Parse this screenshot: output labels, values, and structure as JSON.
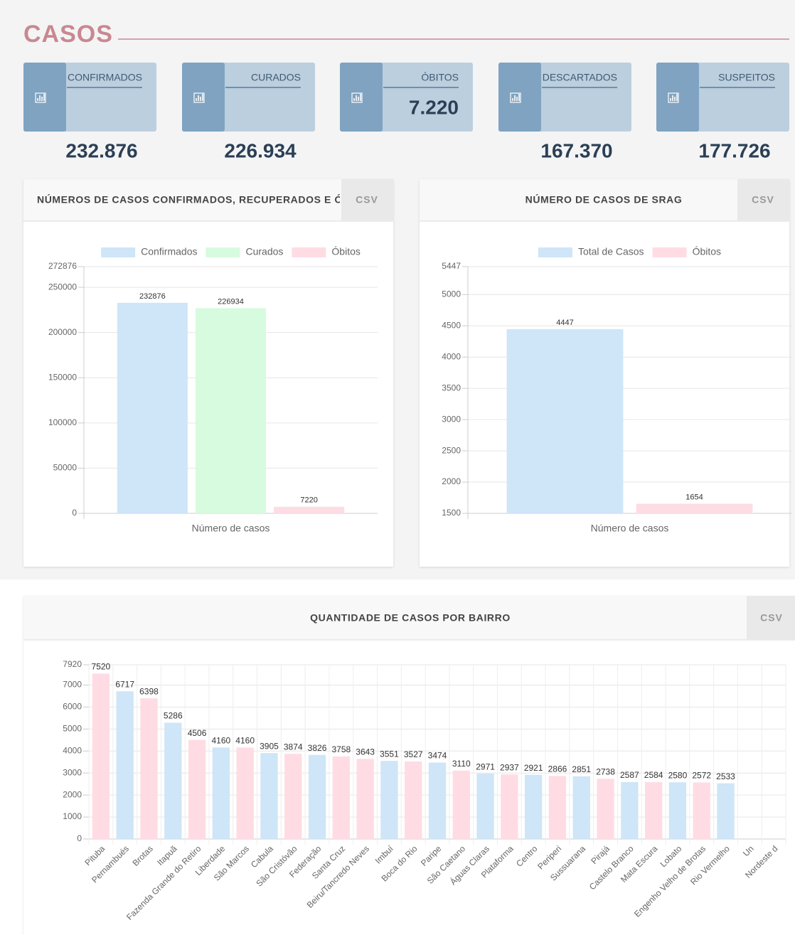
{
  "header": {
    "title": "CASOS"
  },
  "cards": [
    {
      "label": "CONFIRMADOS",
      "value": "232.876"
    },
    {
      "label": "CURADOS",
      "value": "226.934"
    },
    {
      "label": "ÓBITOS",
      "value": "7.220"
    },
    {
      "label": "DESCARTADOS",
      "value": "167.370"
    },
    {
      "label": "SUSPEITOS",
      "value": "177.726"
    }
  ],
  "buttons": [
    "CSV",
    "CSV",
    "CSV"
  ],
  "chart_data": [
    {
      "type": "bar",
      "title": "NÚMEROS DE CASOS CONFIRMADOS, RECUPERADOS E Ó",
      "categories": [
        "Número de casos"
      ],
      "series": [
        {
          "name": "Confirmados",
          "color": "#cfe5f8",
          "values": [
            232876
          ]
        },
        {
          "name": "Curados",
          "color": "#d6fbdf",
          "values": [
            226934
          ]
        },
        {
          "name": "Óbitos",
          "color": "#ffdce3",
          "values": [
            7220
          ]
        }
      ],
      "ylim": [
        0,
        272876
      ],
      "yticks": [
        0,
        50000,
        100000,
        150000,
        200000,
        250000,
        272876
      ],
      "grid": true,
      "legend": "top"
    },
    {
      "type": "bar",
      "title": "NÚMERO DE CASOS DE SRAG",
      "categories": [
        "Número de casos"
      ],
      "series": [
        {
          "name": "Total de Casos",
          "color": "#cfe5f8",
          "values": [
            4447
          ]
        },
        {
          "name": "Óbitos",
          "color": "#ffdce3",
          "values": [
            1654
          ]
        }
      ],
      "ylim": [
        1500,
        5447
      ],
      "yticks": [
        1500,
        2000,
        2500,
        3000,
        3500,
        4000,
        4500,
        5000,
        5447
      ],
      "grid": true,
      "legend": "top"
    },
    {
      "type": "bar",
      "title": "QUANTIDADE DE CASOS POR BAIRRO",
      "categories": [
        "Pituba",
        "Pernambués",
        "Brotas",
        "Itapuã",
        "Fazenda Grande do Retiro",
        "Liberdade",
        "São Marcos",
        "Cabula",
        "São Cristóvão",
        "Federação",
        "Santa Cruz",
        "Beiru/Tancredo Neves",
        "Imbuí",
        "Boca do Rio",
        "Paripe",
        "São Caetano",
        "Águas Claras",
        "Plataforma",
        "Centro",
        "Periperi",
        "Sussuarana",
        "Pirajá",
        "Castelo Branco",
        "Mata Escura",
        "Lobato",
        "Engenho Velho de Brotas",
        "Rio Vermelho",
        "Un",
        "Nordeste d"
      ],
      "values": [
        7520,
        6717,
        6398,
        5286,
        4506,
        4160,
        4160,
        3905,
        3874,
        3826,
        3758,
        3643,
        3551,
        3527,
        3474,
        3110,
        2971,
        2937,
        2921,
        2866,
        2851,
        2738,
        2587,
        2584,
        2580,
        2572,
        2533,
        null,
        null
      ],
      "colors": [
        "#ffdce3",
        "#cfe5f8",
        "#ffdce3",
        "#cfe5f8",
        "#ffdce3",
        "#cfe5f8",
        "#ffdce3",
        "#cfe5f8",
        "#ffdce3",
        "#cfe5f8",
        "#ffdce3",
        "#ffdce3",
        "#cfe5f8",
        "#ffdce3",
        "#cfe5f8",
        "#ffdce3",
        "#cfe5f8",
        "#ffdce3",
        "#cfe5f8",
        "#ffdce3",
        "#cfe5f8",
        "#ffdce3",
        "#cfe5f8",
        "#ffdce3",
        "#cfe5f8",
        "#ffdce3",
        "#cfe5f8",
        "#ffdce3",
        "#cfe5f8"
      ],
      "ylim": [
        0,
        7920
      ],
      "yticks": [
        0,
        1000,
        2000,
        3000,
        4000,
        5000,
        6000,
        7000,
        7920
      ],
      "grid": true
    }
  ]
}
